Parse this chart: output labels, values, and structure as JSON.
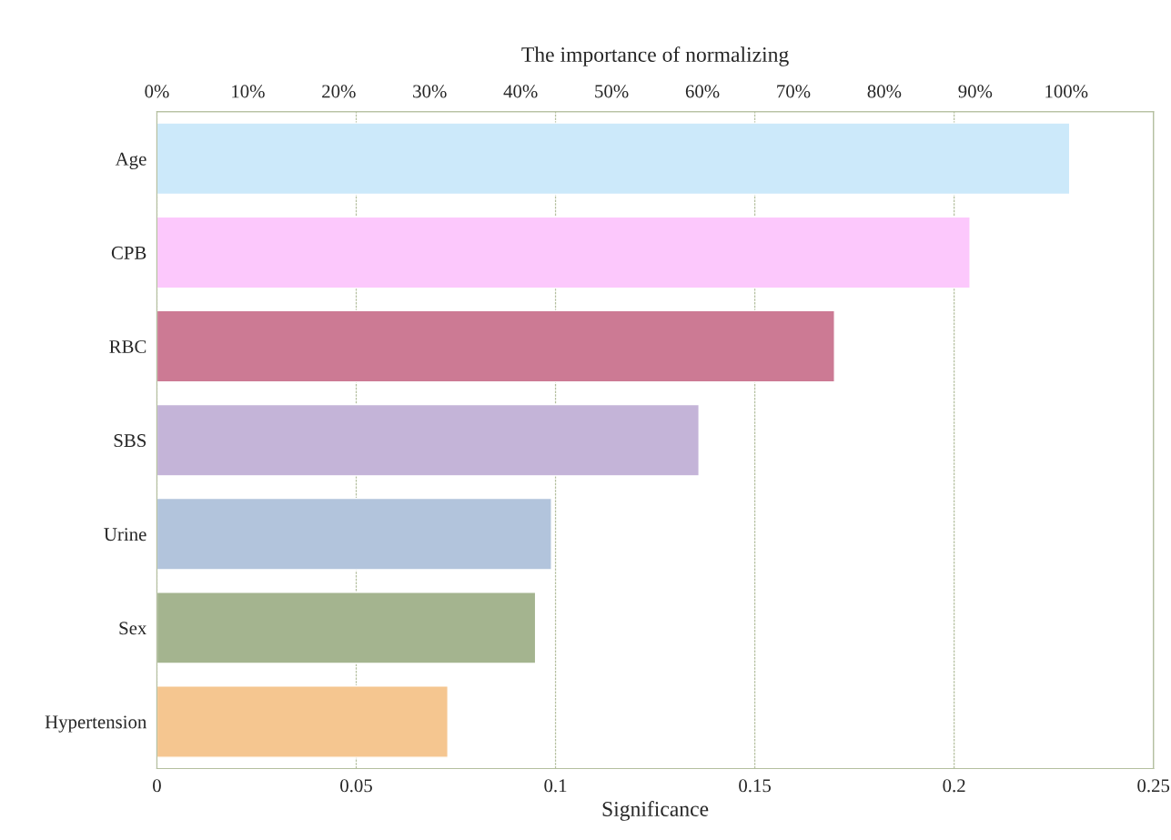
{
  "chart_data": {
    "type": "bar",
    "orientation": "horizontal",
    "title": "The importance of normalizing",
    "xlabel": "Significance",
    "categories": [
      "Age",
      "CPB",
      "RBC",
      "SBS",
      "Urine",
      "Sex",
      "Hypertension"
    ],
    "values": [
      0.229,
      0.204,
      0.17,
      0.136,
      0.099,
      0.095,
      0.073
    ],
    "colors": [
      "#cce9fa",
      "#fcc8fc",
      "#cc7a94",
      "#c4b4d8",
      "#b2c4dc",
      "#a4b48f",
      "#f5c690"
    ],
    "xlim": [
      0,
      0.25
    ],
    "xticks": [
      0,
      0.05,
      0.1,
      0.15,
      0.2,
      0.25
    ],
    "x2lim": [
      0,
      109.6
    ],
    "x2ticks": [
      {
        "value": 0,
        "label": "0%"
      },
      {
        "value": 10,
        "label": "10%"
      },
      {
        "value": 20,
        "label": "20%"
      },
      {
        "value": 30,
        "label": "30%"
      },
      {
        "value": 40,
        "label": "40%"
      },
      {
        "value": 50,
        "label": "50%"
      },
      {
        "value": 60,
        "label": "60%"
      },
      {
        "value": 70,
        "label": "70%"
      },
      {
        "value": 80,
        "label": "80%"
      },
      {
        "value": 90,
        "label": "90%"
      },
      {
        "value": 100,
        "label": "100%"
      }
    ],
    "grid": "x"
  }
}
